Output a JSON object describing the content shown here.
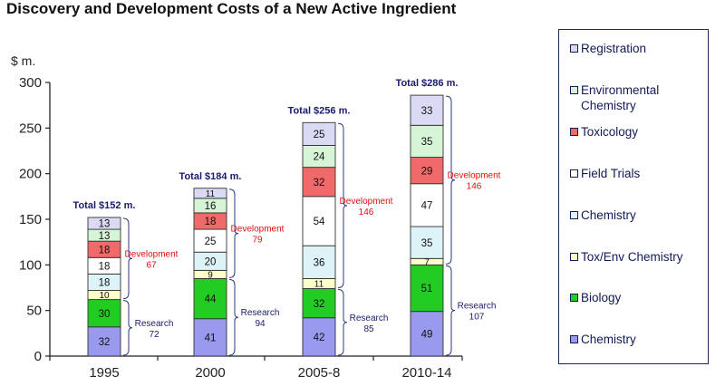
{
  "chart_data": {
    "type": "bar",
    "stacked": true,
    "title": "Discovery and Development Costs of a New Active Ingredient",
    "ylabel": "$ m.",
    "ylim": [
      0,
      300
    ],
    "yticks": [
      0,
      50,
      100,
      150,
      200,
      250,
      300
    ],
    "categories": [
      "1995",
      "2000",
      "2005-8",
      "2010-14"
    ],
    "series": [
      {
        "name": "Chemistry",
        "color": "#9999ee",
        "values": [
          32,
          41,
          42,
          49
        ]
      },
      {
        "name": "Biology",
        "color": "#22cc22",
        "values": [
          30,
          44,
          32,
          51
        ]
      },
      {
        "name": "Tox/Env Chemistry",
        "color": "#ffffcc",
        "values": [
          10,
          9,
          11,
          7
        ]
      },
      {
        "name": "Chemistry",
        "color": "#ddf3f8",
        "values": [
          18,
          20,
          36,
          35
        ]
      },
      {
        "name": "Field Trials",
        "color": "#ffffff",
        "values": [
          18,
          25,
          54,
          47
        ]
      },
      {
        "name": "Toxicology",
        "color": "#f06a6a",
        "values": [
          18,
          18,
          32,
          29
        ]
      },
      {
        "name": "Environmental Chemistry",
        "color": "#d6f5d6",
        "values": [
          13,
          16,
          24,
          35
        ]
      },
      {
        "name": "Registration",
        "color": "#dadaf5",
        "values": [
          13,
          11,
          25,
          33
        ]
      }
    ],
    "totals": [
      "Total $152 m.",
      "Total $184 m.",
      "Total $256 m.",
      "Total $286 m."
    ],
    "research": {
      "label": "Research",
      "values": [
        "72",
        "94",
        "85",
        "107"
      ]
    },
    "development": {
      "label": "Development",
      "values": [
        "67",
        "79",
        "146",
        "146"
      ]
    },
    "legend_position": "right",
    "grid": false
  },
  "colors": {
    "axis": "#222222",
    "total_text": "#1a1a6e",
    "development_text": "#dd1111",
    "research_text": "#1a1a6e",
    "brace": "#2a3a80"
  }
}
